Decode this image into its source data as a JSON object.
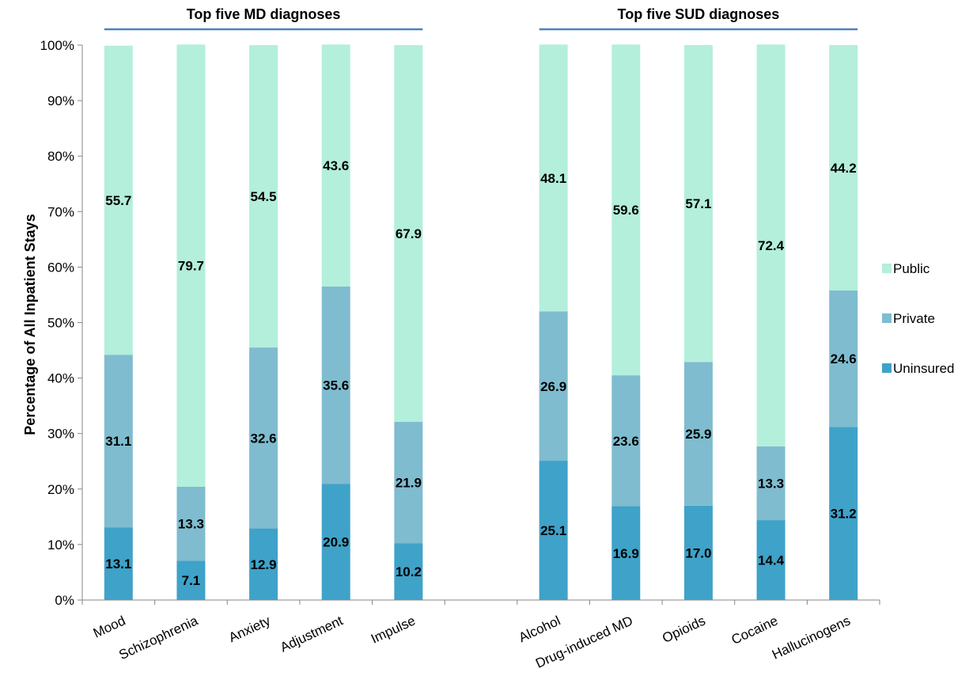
{
  "chart_data": {
    "type": "bar",
    "stacked": true,
    "ylabel": "Percentage of All Inpatient Stays",
    "ylim": [
      0,
      100
    ],
    "y_ticks": [
      "0%",
      "10%",
      "20%",
      "30%",
      "40%",
      "50%",
      "60%",
      "70%",
      "80%",
      "90%",
      "100%"
    ],
    "groups": [
      {
        "title": "Top five MD diagnoses",
        "categories": [
          "Mood",
          "Schizophrenia",
          "Anxiety",
          "Adjustment",
          "Impulse"
        ]
      },
      {
        "title": "Top five SUD diagnoses",
        "categories": [
          "Alcohol",
          "Drug-induced MD",
          "Opioids",
          "Cocaine",
          "Hallucinogens"
        ]
      }
    ],
    "categories": [
      "Mood",
      "Schizophrenia",
      "Anxiety",
      "Adjustment",
      "Impulse",
      "Alcohol",
      "Drug-induced MD",
      "Opioids",
      "Cocaine",
      "Hallucinogens"
    ],
    "series": [
      {
        "name": "Uninsured",
        "color": "#3fa2c8",
        "values": [
          13.1,
          7.1,
          12.9,
          20.9,
          10.2,
          25.1,
          16.9,
          17.0,
          14.4,
          31.2
        ],
        "labels": [
          "13.1",
          "7.1",
          "12.9",
          "20.9",
          "10.2",
          "25.1",
          "16.9",
          "17.0",
          "14.4",
          "31.2"
        ]
      },
      {
        "name": "Private",
        "color": "#7fbccf",
        "values": [
          31.1,
          13.3,
          32.6,
          35.6,
          21.9,
          26.9,
          23.6,
          25.9,
          13.3,
          24.6
        ],
        "labels": [
          "31.1",
          "13.3",
          "32.6",
          "35.6",
          "21.9",
          "26.9",
          "23.6",
          "25.9",
          "13.3",
          "24.6"
        ]
      },
      {
        "name": "Public",
        "color": "#b3efdb",
        "values": [
          55.7,
          79.7,
          54.5,
          43.6,
          67.9,
          48.1,
          59.6,
          57.1,
          72.4,
          44.2
        ],
        "labels": [
          "55.7",
          "79.7",
          "54.5",
          "43.6",
          "67.9",
          "48.1",
          "59.6",
          "57.1",
          "72.4",
          "44.2"
        ]
      }
    ],
    "legend": {
      "position": "right",
      "order": [
        "Public",
        "Private",
        "Uninsured"
      ]
    },
    "group_line_color": "#4f81bd",
    "grid": false
  }
}
